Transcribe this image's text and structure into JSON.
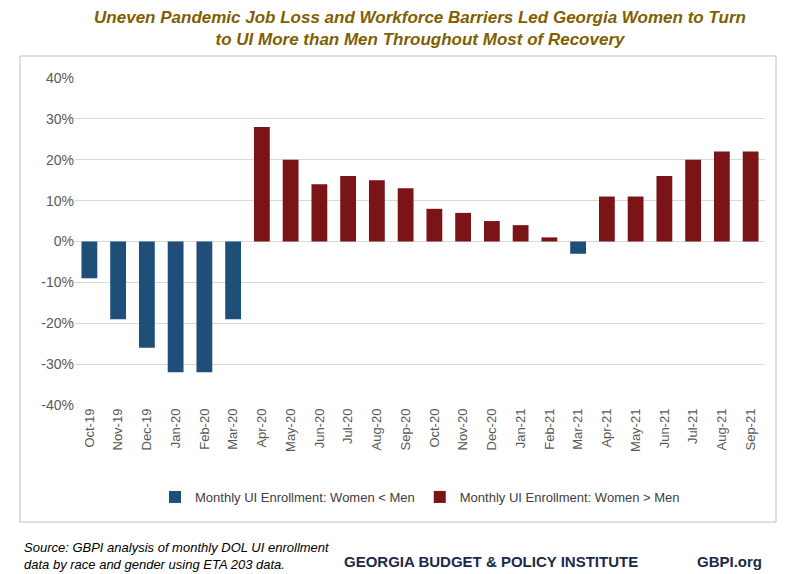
{
  "chart_data": {
    "type": "bar",
    "title": "Uneven Pandemic Job Loss and Workforce Barriers Led Georgia Women to Turn\nto UI More than Men Throughout Most of Recovery",
    "categories": [
      "Oct-19",
      "Nov-19",
      "Dec-19",
      "Jan-20",
      "Feb-20",
      "Mar-20",
      "Apr-20",
      "May-20",
      "Jun-20",
      "Jul-20",
      "Aug-20",
      "Sep-20",
      "Oct-20",
      "Nov-20",
      "Dec-20",
      "Jan-21",
      "Feb-21",
      "Mar-21",
      "Apr-21",
      "May-21",
      "Jun-21",
      "Jul-21",
      "Aug-21",
      "Sep-21"
    ],
    "series": [
      {
        "name": "Monthly UI Enrollment: Women < Men",
        "color": "#1f4e79",
        "values": [
          -9,
          -19,
          -26,
          -32,
          -32,
          -19,
          null,
          null,
          null,
          null,
          null,
          null,
          null,
          null,
          null,
          null,
          null,
          -3,
          null,
          null,
          null,
          null,
          null,
          null
        ]
      },
      {
        "name": "Monthly UI Enrollment: Women > Men",
        "color": "#7b1416",
        "values": [
          null,
          null,
          null,
          null,
          null,
          null,
          28,
          20,
          14,
          16,
          15,
          13,
          8,
          7,
          5,
          4,
          1,
          null,
          11,
          11,
          16,
          20,
          22,
          22
        ]
      }
    ],
    "ylim": [
      -40,
      40
    ],
    "yticks": [
      {
        "value": -40,
        "label": "-40%"
      },
      {
        "value": -30,
        "label": "-30%"
      },
      {
        "value": -20,
        "label": "-20%"
      },
      {
        "value": -10,
        "label": "-10%"
      },
      {
        "value": 0,
        "label": "0%"
      },
      {
        "value": 10,
        "label": "10%"
      },
      {
        "value": 20,
        "label": "20%"
      },
      {
        "value": 30,
        "label": "30%"
      },
      {
        "value": 40,
        "label": "40%"
      }
    ],
    "grid": true,
    "legend": "bottom",
    "source": "Source: GBPI analysis of monthly DOL UI enrollment\ndata by race and gender using ETA 203 data.",
    "annotations": [
      "GEORGIA BUDGET & POLICY INSTITUTE",
      "GBPI.org"
    ]
  }
}
